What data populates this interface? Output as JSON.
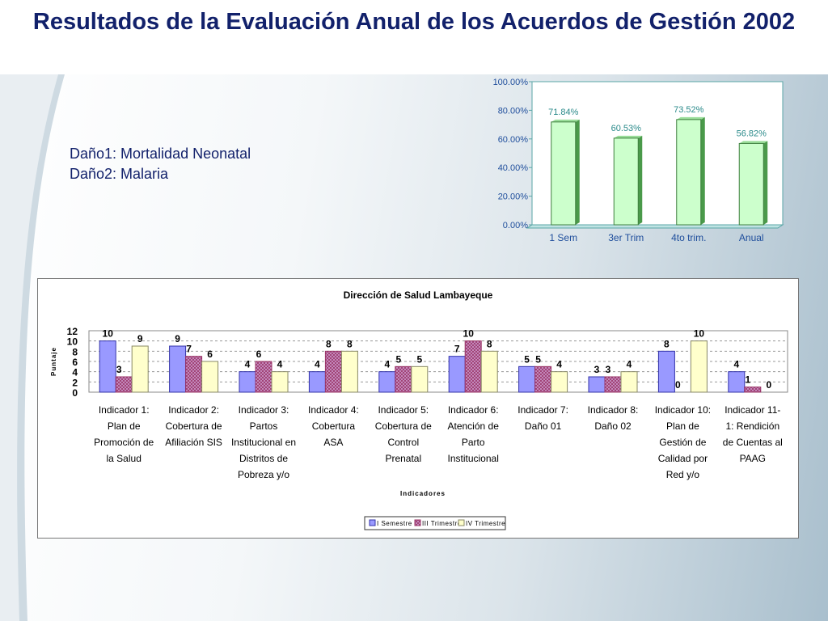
{
  "slide": {
    "title": "Resultados de la Evaluación Anual de los Acuerdos de Gestión 2002",
    "notes": [
      "Daño1: Mortalidad Neonatal",
      "Daño2: Malaria"
    ]
  },
  "chart_data": [
    {
      "type": "bar",
      "categories": [
        "1 Sem",
        "3er Trim",
        "4to trim.",
        "Anual"
      ],
      "values": [
        71.84,
        60.53,
        73.52,
        56.82
      ],
      "data_labels": [
        "71.84%",
        "60.53%",
        "73.52%",
        "56.82%"
      ],
      "ylim": [
        0,
        100
      ],
      "yticks": [
        "0.00%",
        "20.00%",
        "40.00%",
        "60.00%",
        "80.00%",
        "100.00%"
      ],
      "grid": false,
      "colors": {
        "bar": "#ccffcc",
        "bar_side": "#4a9a4a",
        "labels": "#2a8a8a",
        "axis_text": "#1f4e9c"
      }
    },
    {
      "type": "bar",
      "title": "Dirección de Salud Lambayeque",
      "xlabel": "Indicadores",
      "ylabel": "Puntaje",
      "ylim": [
        0,
        12
      ],
      "yticks": [
        "0",
        "2",
        "4",
        "6",
        "8",
        "10",
        "12"
      ],
      "grid": true,
      "legend_position": "bottom",
      "categories": [
        [
          "Indicador 1:",
          "Plan de",
          "Promoción de",
          "la Salud"
        ],
        [
          "Indicador 2:",
          "Cobertura de",
          "Afiliación SIS"
        ],
        [
          "Indicador 3:",
          "Partos",
          "Institucional en",
          "Distritos de",
          "Pobreza y/o"
        ],
        [
          "Indicador 4:",
          "Cobertura",
          "ASA"
        ],
        [
          "Indicador 5:",
          "Cobertura de",
          "Control",
          "Prenatal"
        ],
        [
          "Indicador 6:",
          "Atención de",
          "Parto",
          "Institucional"
        ],
        [
          "Indicador 7:",
          "Daño 01"
        ],
        [
          "Indicador 8:",
          "Daño 02"
        ],
        [
          "Indicador 10:",
          "Plan de",
          "Gestión de",
          "Calidad por",
          "Red y/o"
        ],
        [
          "Indicador 11-",
          "1: Rendición",
          "de Cuentas al",
          "PAAG"
        ]
      ],
      "series": [
        {
          "name": "I Semestre",
          "values": [
            10,
            9,
            4,
            4,
            4,
            7,
            5,
            3,
            8,
            4
          ],
          "labels": [
            "10",
            "9",
            "4",
            "4",
            "4",
            "7",
            "5",
            "3",
            "8",
            "4"
          ],
          "color": "#9999ff"
        },
        {
          "name": "III Trimestre",
          "values": [
            3,
            7,
            6,
            8,
            5,
            10,
            5,
            3,
            0,
            1
          ],
          "labels": [
            "3",
            "7",
            "6",
            "8",
            "5",
            "10",
            "5",
            "3",
            "0",
            "1"
          ],
          "color": "#cc99cc"
        },
        {
          "name": "IV Trimestre",
          "values": [
            9,
            6,
            4,
            8,
            5,
            8,
            4,
            4,
            10,
            0
          ],
          "labels": [
            "9",
            "6",
            "4",
            "8",
            "5",
            "8",
            "4",
            "4",
            "10",
            "0"
          ],
          "color": "#ffffcc"
        }
      ]
    }
  ]
}
